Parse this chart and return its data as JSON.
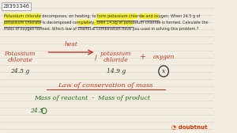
{
  "bg_color": "#f2ede0",
  "line_color": "#d0c8b8",
  "id_text": "28393346",
  "q_line1": "Potassium chlorate decomposes, on heating, to form potassium chloride and oxygen. When 24.5 g of",
  "q_line2": "potassium chlorate is decomposed completely, then 14.9g of potassium chloride is formed. Calculate the",
  "q_line3": "mass of oxygen formed. Which law of chemical combination have you used in solving this problem ?",
  "reaction_left_line1": "Potassium",
  "reaction_left_line2": "chlorate",
  "reaction_heat": "heat",
  "reaction_right1_line1": "potassium",
  "reaction_right1_line2": "chloride",
  "reaction_plus": "+",
  "reaction_right2": "oxygen",
  "mass_left": "24.5 g",
  "mass_mid": "14.9 g",
  "mass_circle_label": "x",
  "law_text": "Law of conservation of mass",
  "eq_line": "Mass of reactant  -  Mass of product",
  "eq_line2": "24.5",
  "red": "#c0392b",
  "green": "#1a6b1a",
  "dark": "#2c2c2c",
  "yellow_hl": "#f5f014",
  "logo": "doubtnut",
  "logo_color": "#e63000"
}
